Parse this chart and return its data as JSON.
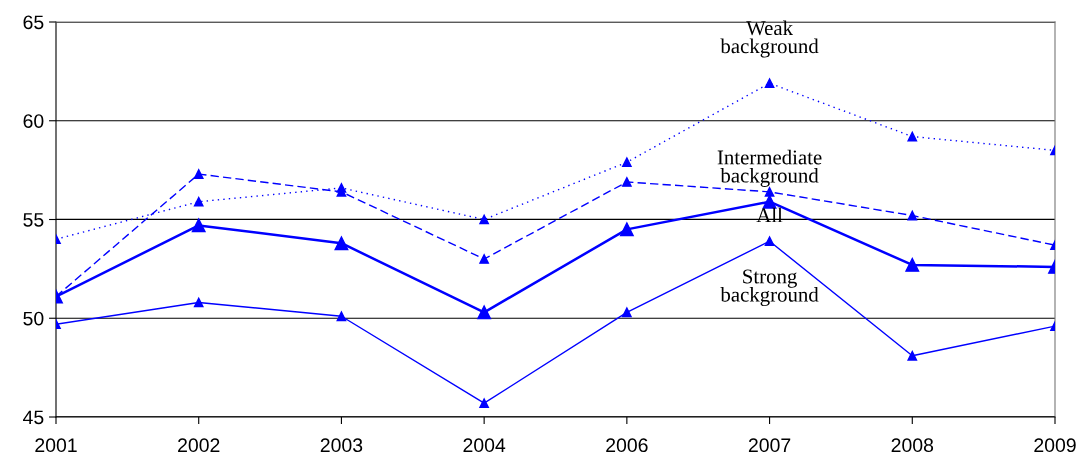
{
  "chart_data": {
    "type": "line",
    "categories": [
      "2001",
      "2002",
      "2003",
      "2004",
      "2006",
      "2007",
      "2008",
      "2009"
    ],
    "series": [
      {
        "name": "Weak background",
        "color": "#0000ff",
        "line_style": "dotted",
        "values": [
          54.0,
          55.9,
          56.6,
          55.0,
          57.9,
          61.9,
          59.2,
          58.5
        ]
      },
      {
        "name": "Intermediate background",
        "color": "#0000ff",
        "line_style": "dashed",
        "values": [
          51.1,
          57.3,
          56.4,
          53.0,
          56.9,
          56.4,
          55.2,
          53.7
        ]
      },
      {
        "name": "All",
        "color": "#0000ff",
        "line_style": "solid",
        "values": [
          51.1,
          54.7,
          53.8,
          50.3,
          54.5,
          55.9,
          52.7,
          52.6
        ]
      },
      {
        "name": "Strong background",
        "color": "#0000ff",
        "line_style": "solid",
        "values": [
          49.7,
          50.8,
          50.1,
          45.7,
          50.3,
          53.9,
          48.1,
          49.6
        ]
      }
    ],
    "ylim": [
      45,
      65
    ],
    "yticks": [
      45,
      50,
      55,
      60,
      65
    ],
    "grid": "y",
    "marker": "triangle",
    "legend": false
  }
}
